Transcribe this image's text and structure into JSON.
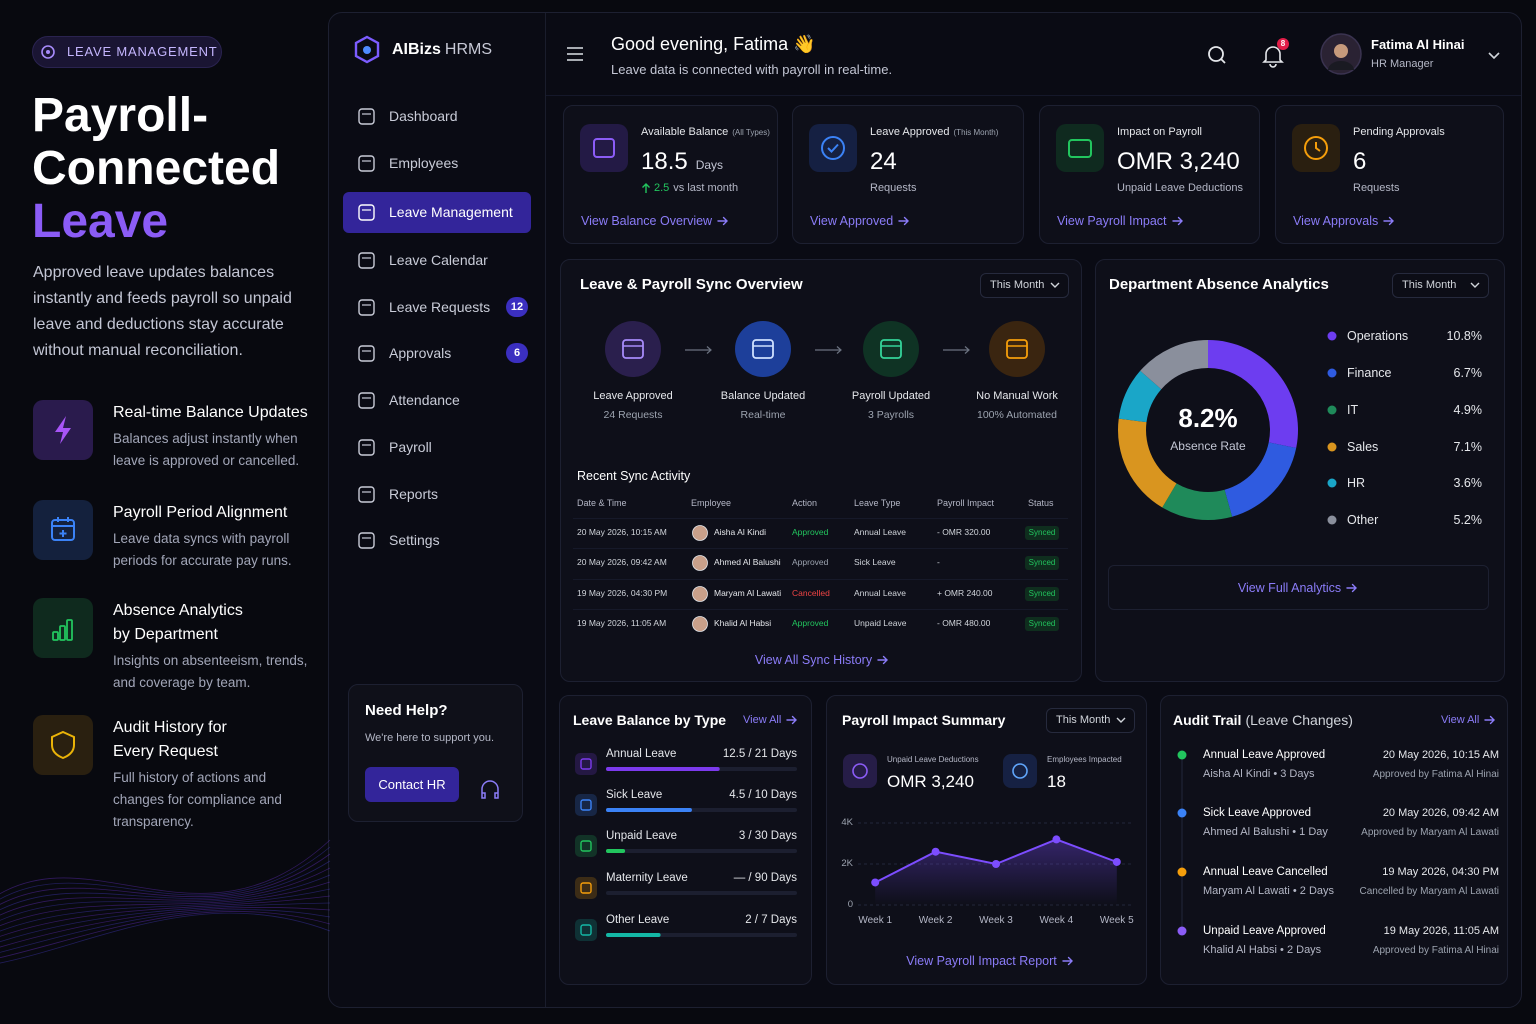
{
  "promo": {
    "badge": "LEAVE MANAGEMENT",
    "title_lines": [
      "Payroll-",
      "Connected",
      "Leave"
    ],
    "description": "Approved leave updates balances instantly and feeds payroll so unpaid leave and deductions stay accurate without manual reconciliation.",
    "features": [
      {
        "title": "Real-time Balance Updates",
        "text": "Balances adjust instantly when leave is approved or cancelled."
      },
      {
        "title": "Payroll Period Alignment",
        "text": "Leave data syncs with payroll periods for accurate pay runs."
      },
      {
        "title": "Absence Analytics by Department",
        "text": "Insights on absenteeism, trends, and coverage by team."
      },
      {
        "title": "Audit History for Every Request",
        "text": "Full history of actions and changes for compliance and transparency."
      }
    ]
  },
  "sidebar": {
    "brand": "AIBizs",
    "brand_suffix": "HRMS",
    "nav": [
      {
        "label": "Dashboard"
      },
      {
        "label": "Employees"
      },
      {
        "label": "Leave Management",
        "active": true
      },
      {
        "label": "Leave Calendar"
      },
      {
        "label": "Leave Requests",
        "badge": 12
      },
      {
        "label": "Approvals",
        "badge": 6
      },
      {
        "label": "Attendance"
      },
      {
        "label": "Payroll"
      },
      {
        "label": "Reports"
      },
      {
        "label": "Settings"
      }
    ],
    "help": {
      "title": "Need Help?",
      "text": "We're here to support you.",
      "button": "Contact HR"
    }
  },
  "header": {
    "greeting": "Good evening, Fatima 👋",
    "subtitle": "Leave data is connected with payroll in real-time.",
    "notifications": 8,
    "user": {
      "name": "Fatima Al Hinai",
      "role": "HR Manager"
    }
  },
  "stats": [
    {
      "label": "Available Balance",
      "qualifier": "(All Types)",
      "value": "18.5",
      "unit": "Days",
      "trend": "2.5",
      "note": "vs last month",
      "link": "View Balance Overview"
    },
    {
      "label": "Leave Approved",
      "qualifier": "(This Month)",
      "value": "24",
      "note": "Requests",
      "link": "View Approved"
    },
    {
      "label": "Impact on Payroll",
      "value": "OMR 3,240",
      "note": "Unpaid Leave Deductions",
      "link": "View Payroll Impact"
    },
    {
      "label": "Pending Approvals",
      "value": "6",
      "note": "Requests",
      "link": "View Approvals"
    }
  ],
  "sync": {
    "title": "Leave & Payroll Sync Overview",
    "filter": "This Month",
    "steps": [
      {
        "label": "Leave Approved",
        "sub": "24 Requests"
      },
      {
        "label": "Balance Updated",
        "sub": "Real-time"
      },
      {
        "label": "Payroll Updated",
        "sub": "3 Payrolls"
      },
      {
        "label": "No Manual Work",
        "sub": "100% Automated"
      }
    ],
    "recent": {
      "title": "Recent Sync Activity",
      "columns": [
        "Date & Time",
        "Employee",
        "Action",
        "Leave Type",
        "Payroll Impact",
        "Status"
      ],
      "rows": [
        [
          "20 May 2026, 10:15 AM",
          "Aisha Al Kindi",
          "Approved",
          "Annual Leave",
          "- OMR 320.00",
          "Synced"
        ],
        [
          "20 May 2026, 09:42 AM",
          "Ahmed Al Balushi",
          "Approved",
          "Sick Leave",
          "-",
          "Synced"
        ],
        [
          "19 May 2026, 04:30 PM",
          "Maryam Al Lawati",
          "Cancelled",
          "Annual Leave",
          "+ OMR 240.00",
          "Synced"
        ],
        [
          "19 May 2026, 11:05 AM",
          "Khalid Al Habsi",
          "Approved",
          "Unpaid Leave",
          "- OMR 480.00",
          "Synced"
        ]
      ]
    },
    "link": "View All Sync History"
  },
  "chart_data": [
    {
      "type": "pie",
      "title": "Department Absence Analytics",
      "filter": "This Month",
      "categories": [
        "Operations",
        "Finance",
        "IT",
        "Sales",
        "HR",
        "Other"
      ],
      "values": [
        10.8,
        6.7,
        4.9,
        7.1,
        3.6,
        5.2
      ],
      "value_labels": [
        "10.8%",
        "6.7%",
        "4.9%",
        "7.1%",
        "3.6%",
        "5.2%"
      ],
      "colors": [
        "#6d3df0",
        "#2f5be0",
        "#1f8a5a",
        "#d9951f",
        "#1aa6c8",
        "#8a8f9c"
      ],
      "center_value": "8.2%",
      "center_label": "Absence Rate",
      "link": "View Full Analytics"
    },
    {
      "type": "line",
      "title": "Payroll Impact Summary",
      "filter": "This Month",
      "stats": [
        {
          "label": "Unpaid Leave Deductions",
          "value": "OMR 3,240"
        },
        {
          "label": "Employees Impacted",
          "value": "18"
        }
      ],
      "categories": [
        "Week 1",
        "Week 2",
        "Week 3",
        "Week 4",
        "Week 5"
      ],
      "values": [
        1100,
        2600,
        2000,
        3200,
        2100
      ],
      "color": "#7c4dff",
      "ylim": [
        0,
        4000
      ],
      "yticks": [
        0,
        {
          "value": 2000,
          "label": "2K"
        },
        {
          "value": 4000,
          "label": "4K"
        }
      ],
      "grid": true,
      "link": "View Payroll Impact Report"
    }
  ],
  "leave_balance": {
    "title": "Leave Balance by Type",
    "link": "View All",
    "items": [
      {
        "name": "Annual Leave",
        "used": 12.5,
        "total": 21,
        "label": "12.5 / 21 Days",
        "color": "#7c3aed"
      },
      {
        "name": "Sick Leave",
        "used": 4.5,
        "total": 10,
        "label": "4.5 / 10 Days",
        "color": "#3b82f6"
      },
      {
        "name": "Unpaid Leave",
        "used": 3,
        "total": 30,
        "label": "3 / 30 Days",
        "color": "#22c55e"
      },
      {
        "name": "Maternity Leave",
        "used": null,
        "total": 90,
        "label": "— / 90 Days",
        "color": "#f59e0b"
      },
      {
        "name": "Other Leave",
        "used": 2,
        "total": 7,
        "label": "2 / 7 Days",
        "color": "#14b8a6"
      }
    ]
  },
  "audit": {
    "title": "Audit Trail",
    "title_note": "(Leave Changes)",
    "link": "View All",
    "entries": [
      {
        "title": "Annual Leave Approved",
        "sub": "Aisha Al Kindi • 3 Days",
        "date": "20 May 2026, 10:15 AM",
        "by": "Approved by Fatima Al Hinai"
      },
      {
        "title": "Sick Leave Approved",
        "sub": "Ahmed Al Balushi • 1 Day",
        "date": "20 May 2026, 09:42 AM",
        "by": "Approved by Maryam Al Lawati"
      },
      {
        "title": "Annual Leave Cancelled",
        "sub": "Maryam Al Lawati • 2 Days",
        "date": "19 May 2026, 04:30 PM",
        "by": "Cancelled by Maryam Al Lawati"
      },
      {
        "title": "Unpaid Leave Approved",
        "sub": "Khalid Al Habsi • 2 Days",
        "date": "19 May 2026, 11:05 AM",
        "by": "Approved by Fatima Al Hinai"
      }
    ]
  }
}
